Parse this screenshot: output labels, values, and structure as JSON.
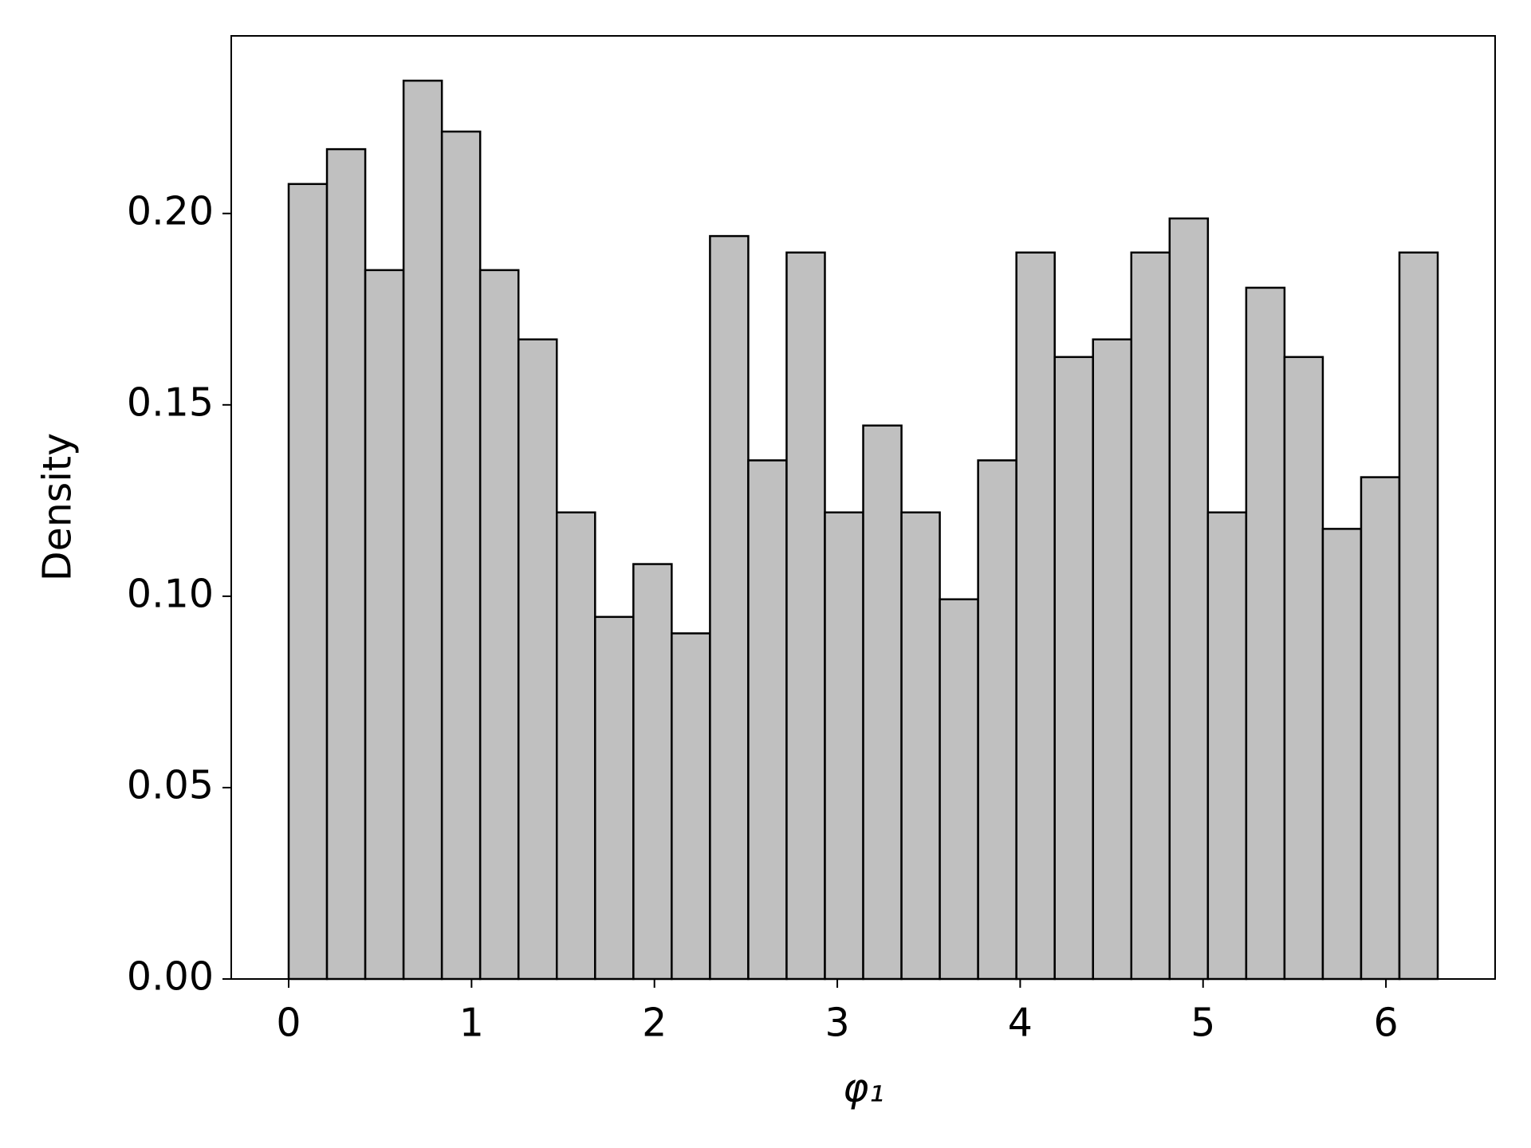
{
  "chart_data": {
    "type": "histogram",
    "x_label": "φ₁",
    "y_label": "Density",
    "bins": [
      0,
      0.20944,
      0.41888,
      0.62832,
      0.83776,
      1.0472,
      1.25664,
      1.46608,
      1.67552,
      1.88496,
      2.0944,
      2.30383,
      2.51327,
      2.72271,
      2.93215,
      3.14159,
      3.35103,
      3.56047,
      3.76991,
      3.97935,
      4.18879,
      4.39823,
      4.60767,
      4.81711,
      5.02655,
      5.23599,
      5.44543,
      5.65487,
      5.86431,
      6.07375,
      6.28319
    ],
    "values": [
      0.2077,
      0.2168,
      0.1852,
      0.2347,
      0.2214,
      0.1852,
      0.1671,
      0.1219,
      0.0946,
      0.1084,
      0.0903,
      0.1941,
      0.1355,
      0.1898,
      0.1219,
      0.1446,
      0.1219,
      0.0992,
      0.1355,
      0.1898,
      0.1625,
      0.1671,
      0.1898,
      0.1987,
      0.1219,
      0.1806,
      0.1625,
      0.1176,
      0.1311,
      0.1898
    ],
    "color": "#c0c0c0",
    "edgecolor": "#000000",
    "xlim": [
      -0.314,
      6.597
    ],
    "xticks": [
      0,
      1,
      2,
      3,
      4,
      5,
      6
    ],
    "ylim": [
      0,
      0.2464
    ],
    "yticks": [
      {
        "value": 0,
        "label": "0.00"
      },
      {
        "value": 0.05,
        "label": "0.05"
      },
      {
        "value": 0.1,
        "label": "0.10"
      },
      0.15,
      {
        "value": 0.2,
        "label": "0.20"
      }
    ],
    "grid": false
  }
}
